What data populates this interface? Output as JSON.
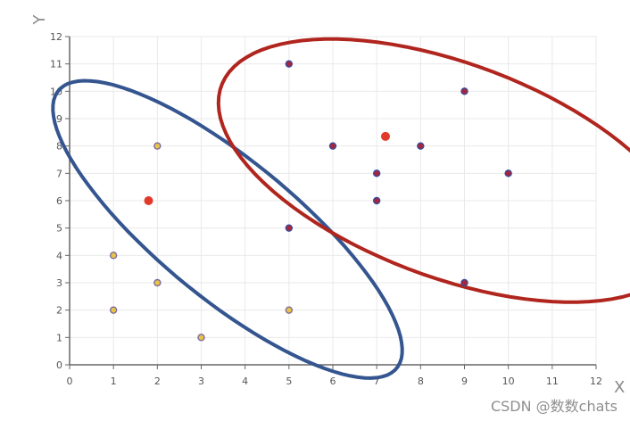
{
  "chart_data": {
    "type": "scatter",
    "xlabel": "X",
    "ylabel": "Y",
    "xlim": [
      0,
      12
    ],
    "ylim": [
      0,
      12
    ],
    "xticks": [
      "0",
      "1",
      "2",
      "3",
      "4",
      "5",
      "6",
      "7",
      "8",
      "9",
      "10",
      "11",
      "12"
    ],
    "yticks": [
      "0",
      "1",
      "2",
      "3",
      "4",
      "5",
      "6",
      "7",
      "8",
      "9",
      "10",
      "11",
      "12"
    ],
    "grid": true,
    "series": [
      {
        "points": [
          [
            1,
            4
          ],
          [
            1,
            2
          ],
          [
            2,
            8
          ],
          [
            2,
            3
          ],
          [
            3,
            1
          ],
          [
            5,
            2
          ]
        ],
        "color": "#e8c34a",
        "border": "#7c6b9a"
      },
      {
        "points": [
          [
            5,
            11
          ],
          [
            5,
            5
          ],
          [
            6,
            8
          ],
          [
            7,
            7
          ],
          [
            7,
            6
          ],
          [
            8,
            8
          ],
          [
            9,
            10
          ],
          [
            9,
            3
          ],
          [
            10,
            7
          ]
        ],
        "color": "#a8243a",
        "border": "#3a4a9a"
      }
    ],
    "centroids": {
      "points": [
        [
          1.8,
          6
        ],
        [
          7.2,
          8.35
        ]
      ],
      "color": "#e23a2a"
    },
    "cluster_outlines": {
      "colors": [
        "#34558f",
        "#b0251e"
      ]
    }
  },
  "watermark": "CSDN @数数chats"
}
